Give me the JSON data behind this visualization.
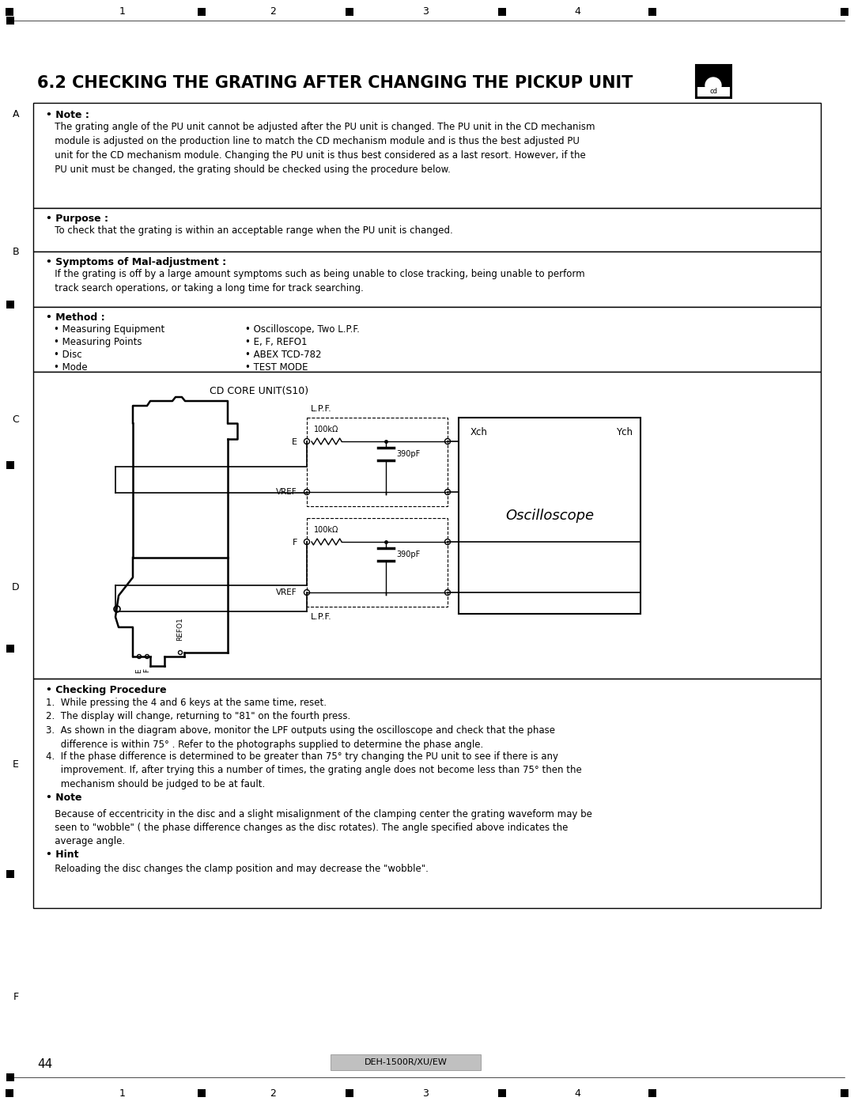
{
  "title": "6.2 CHECKING THE GRATING AFTER CHANGING THE PICKUP UNIT",
  "page_bg": "#ffffff",
  "page_number": "44",
  "footer_model": "DEH-1500R/XU/EW",
  "top_marks": [
    "1",
    "2",
    "3",
    "4"
  ],
  "side_marks": [
    "A",
    "B",
    "C",
    "D",
    "E",
    "F"
  ],
  "note_title": "• Note :",
  "note_text": "   The grating angle of the PU unit cannot be adjusted after the PU unit is changed. The PU unit in the CD mechanism\n   module is adjusted on the production line to match the CD mechanism module and is thus the best adjusted PU\n   unit for the CD mechanism module. Changing the PU unit is thus best considered as a last resort. However, if the\n   PU unit must be changed, the grating should be checked using the procedure below.",
  "purpose_title": "• Purpose :",
  "purpose_text": "   To check that the grating is within an acceptable range when the PU unit is changed.",
  "symptoms_title": "• Symptoms of Mal-adjustment :",
  "symptoms_text": "   If the grating is off by a large amount symptoms such as being unable to close tracking, being unable to perform\n   track search operations, or taking a long time for track searching.",
  "method_title": "• Method :",
  "method_left": [
    "• Measuring Equipment",
    "• Measuring Points",
    "• Disc",
    "• Mode"
  ],
  "method_right": [
    "• Oscilloscope, Two L.P.F.",
    "• E, F, REFO1",
    "• ABEX TCD-782",
    "• TEST MODE"
  ],
  "cd_core_label": "CD CORE UNIT(S10)",
  "checking_procedure_title": "• Checking Procedure",
  "step1": "1.  While pressing the 4 and 6 keys at the same time, reset.",
  "step2": "2.  The display will change, returning to \"81\" on the fourth press.",
  "step3": "3.  As shown in the diagram above, monitor the LPF outputs using the oscilloscope and check that the phase\n     difference is within 75° . Refer to the photographs supplied to determine the phase angle.",
  "step4": "4.  If the phase difference is determined to be greater than 75° try changing the PU unit to see if there is any\n     improvement. If, after trying this a number of times, the grating angle does not become less than 75° then the\n     mechanism should be judged to be at fault.",
  "note2_title": "• Note",
  "note2_text": "   Because of eccentricity in the disc and a slight misalignment of the clamping center the grating waveform may be\n   seen to \"wobble\" ( the phase difference changes as the disc rotates). The angle specified above indicates the\n   average angle.",
  "hint_title": "• Hint",
  "hint_text": "   Reloading the disc changes the clamp position and may decrease the \"wobble\"."
}
